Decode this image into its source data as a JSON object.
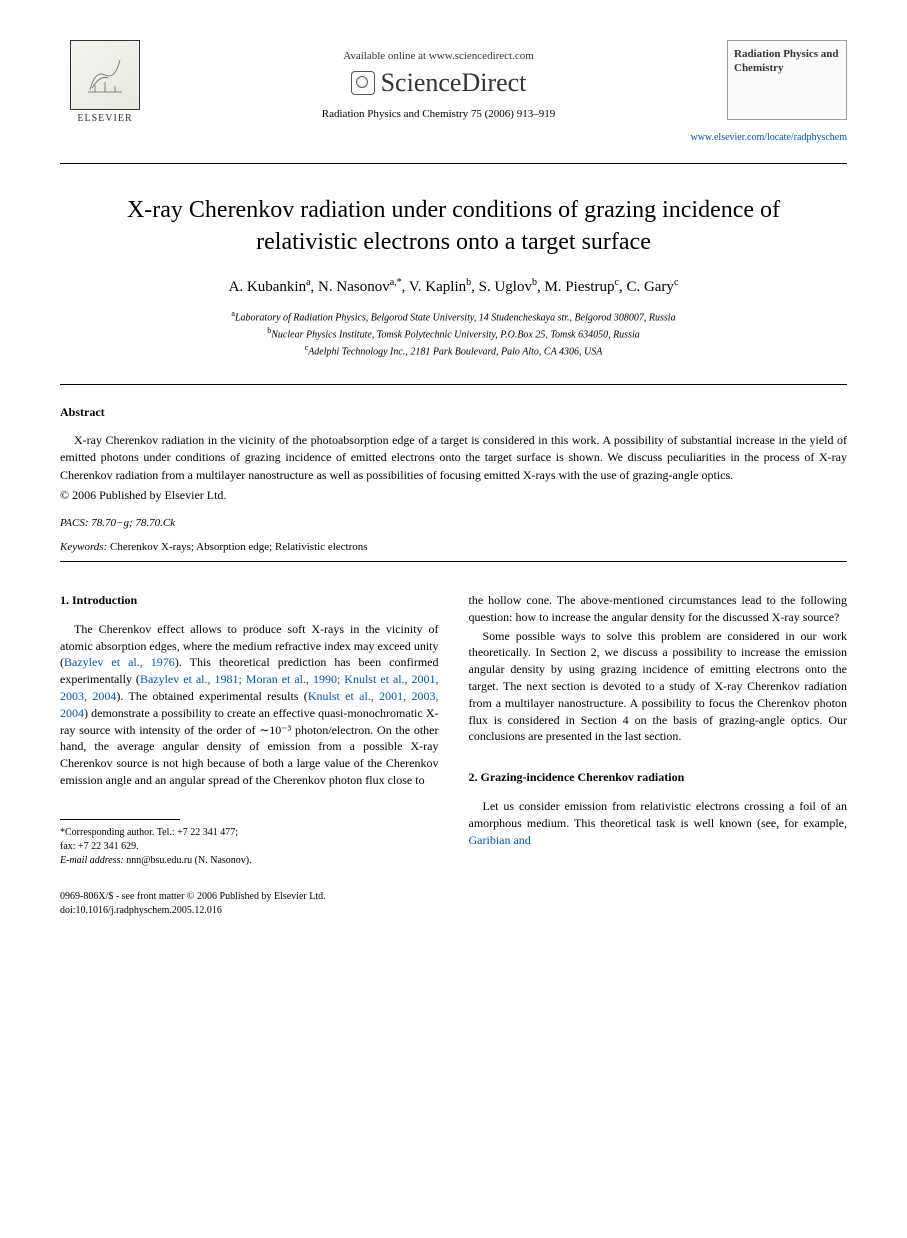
{
  "header": {
    "publisher": "ELSEVIER",
    "available_online": "Available online at www.sciencedirect.com",
    "sciencedirect": "ScienceDirect",
    "journal_ref": "Radiation Physics and Chemistry 75 (2006) 913–919",
    "journal_cover_title": "Radiation Physics and Chemistry",
    "journal_url": "www.elsevier.com/locate/radphyschem"
  },
  "title": "X-ray Cherenkov radiation under conditions of grazing incidence of relativistic electrons onto a target surface",
  "authors_html": "A. Kubankin<sup>a</sup>, N. Nasonov<sup>a,*</sup>, V. Kaplin<sup>b</sup>, S. Uglov<sup>b</sup>, M. Piestrup<sup>c</sup>, C. Gary<sup>c</sup>",
  "affiliations": {
    "a": "Laboratory of Radiation Physics, Belgorod State University, 14 Studencheskaya str., Belgorod 308007, Russia",
    "b": "Nuclear Physics Institute, Tomsk Polytechnic University, P.O.Box 25, Tomsk 634050, Russia",
    "c": "Adelphi Technology Inc., 2181 Park Boulevard, Palo Alto, CA 4306, USA"
  },
  "abstract": {
    "heading": "Abstract",
    "text": "X-ray Cherenkov radiation in the vicinity of the photoabsorption edge of a target is considered in this work. A possibility of substantial increase in the yield of emitted photons under conditions of grazing incidence of emitted electrons onto the target surface is shown. We discuss peculiarities in the process of X-ray Cherenkov radiation from a multilayer nanostructure as well as possibilities of focusing emitted X-rays with the use of grazing-angle optics.",
    "copyright": "© 2006 Published by Elsevier Ltd."
  },
  "pacs": "PACS: 78.70−g; 78.70.Ck",
  "keywords": {
    "label": "Keywords:",
    "text": "Cherenkov X-rays; Absorption edge; Relativistic electrons"
  },
  "section1": {
    "heading": "1. Introduction",
    "p1_pre": "The Cherenkov effect allows to produce soft X-rays in the vicinity of atomic absorption edges, where the medium refractive index may exceed unity (",
    "p1_cite1": "Bazylev et al., 1976",
    "p1_mid1": "). This theoretical prediction has been confirmed experimentally (",
    "p1_cite2": "Bazylev et al., 1981; Moran et al., 1990; Knulst et al., 2001, 2003, 2004",
    "p1_mid2": "). The obtained experimental results (",
    "p1_cite3": "Knulst et al., 2001, 2003, 2004",
    "p1_post": ") demonstrate a possibility to create an effective quasi-monochromatic X-ray source with intensity of the order of ∼10⁻³ photon/electron. On the other hand, the average angular density of emission from a possible X-ray Cherenkov source is not high because of both a large value of the Cherenkov emission angle and an angular spread of the Cherenkov photon flux close to",
    "p2": "the hollow cone. The above-mentioned circumstances lead to the following question: how to increase the angular density for the discussed X-ray source?",
    "p3": "Some possible ways to solve this problem are considered in our work theoretically. In Section 2, we discuss a possibility to increase the emission angular density by using grazing incidence of emitting electrons onto the target. The next section is devoted to a study of X-ray Cherenkov radiation from a multilayer nanostructure. A possibility to focus the Cherenkov photon flux is considered in Section 4 on the basis of grazing-angle optics. Our conclusions are presented in the last section."
  },
  "section2": {
    "heading": "2. Grazing-incidence Cherenkov radiation",
    "p1_pre": "Let us consider emission from relativistic electrons crossing a foil of an amorphous medium. This theoretical task is well known (see, for example, ",
    "p1_cite": "Garibian and"
  },
  "footnote": {
    "corr": "*Corresponding author. Tel.: +7 22 341 477;",
    "fax": "fax: +7 22 341 629.",
    "email_label": "E-mail address:",
    "email": "nnn@bsu.edu.ru (N. Nasonov)."
  },
  "bottom": {
    "line1": "0969-806X/$ - see front matter © 2006 Published by Elsevier Ltd.",
    "line2": "doi:10.1016/j.radphyschem.2005.12.016"
  }
}
